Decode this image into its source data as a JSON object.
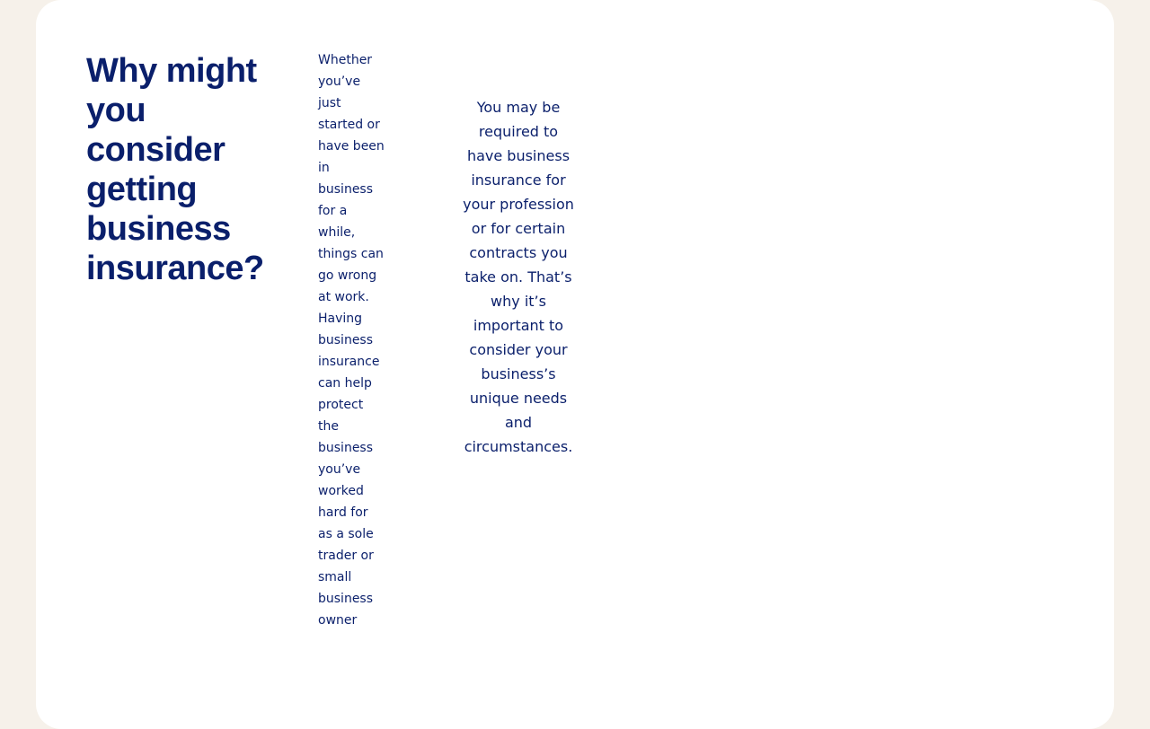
{
  "section": {
    "heading": "Why might you consider getting business insurance?",
    "intro_text": "Whether you’ve just started or have been in business for a while, things can go wrong at work. Having business insurance can help protect the business you’ve worked hard for as a sole trader or small business owner",
    "note_text": "You may be required to have business insurance for your profession or for certain contracts you take on. That’s why it’s important to consider your business’s unique needs and circumstances."
  },
  "colors": {
    "page_background": "#f6f1ea",
    "card_background": "#ffffff",
    "text_navy": "#0a1f6b"
  }
}
